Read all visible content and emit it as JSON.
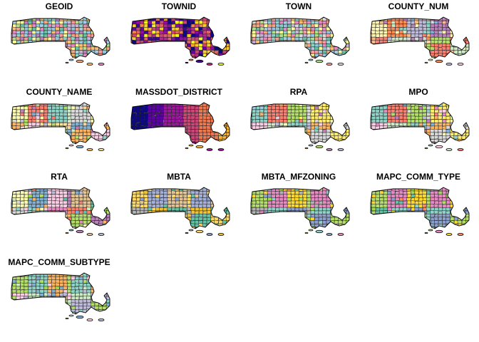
{
  "panels": [
    {
      "title": "GEOID",
      "palette": [
        "#f4a582",
        "#92c5de",
        "#b2df8a",
        "#fdbf6f",
        "#cab2d6",
        "#fb9a99",
        "#a6cee3",
        "#ffff99",
        "#8dd3c7",
        "#e78ac3",
        "#66c2a5",
        "#bc80bd"
      ],
      "mode": "random"
    },
    {
      "title": "TOWNID",
      "palette": [
        "#0d0887",
        "#41049d",
        "#6a00a8",
        "#8f0da4",
        "#b12a90",
        "#cc4778",
        "#e16462",
        "#f2844b",
        "#fca636",
        "#fcce25",
        "#f0f921"
      ],
      "mode": "random"
    },
    {
      "title": "TOWN",
      "palette": [
        "#f4a582",
        "#92c5de",
        "#b2df8a",
        "#fdbf6f",
        "#cab2d6",
        "#fb9a99",
        "#a6cee3",
        "#ffff99",
        "#8dd3c7",
        "#e78ac3",
        "#66c2a5",
        "#d9d9d9"
      ],
      "mode": "random"
    },
    {
      "title": "COUNTY_NUM",
      "palette": [
        "#fff7b2",
        "#fdd49e",
        "#fdbb84",
        "#fc8d59",
        "#b3de69",
        "#80b1d3",
        "#bebada",
        "#fb8072",
        "#8dd3c7",
        "#ffffb3",
        "#ccebc5",
        "#bc80bd",
        "#fccde5",
        "#d9d9d9"
      ],
      "mode": "region"
    },
    {
      "title": "COUNTY_NAME",
      "palette": [
        "#ffffb3",
        "#fdd49e",
        "#b3de69",
        "#fb8072",
        "#80b1d3",
        "#bebada",
        "#8dd3c7",
        "#fdb462",
        "#ccebc5",
        "#bc80bd",
        "#fccde5",
        "#d9d9d9",
        "#e5f5e0",
        "#fee391"
      ],
      "mode": "region"
    },
    {
      "title": "MASSDOT_DISTRICT",
      "palette": [
        "#0d0887",
        "#5c01a6",
        "#9c179e",
        "#cc4778",
        "#ed7953",
        "#fdb42f"
      ],
      "mode": "gradient"
    },
    {
      "title": "RPA",
      "palette": [
        "#8dd3c7",
        "#ffffb3",
        "#bebada",
        "#fb8072",
        "#80b1d3",
        "#fdb462",
        "#b3de69",
        "#fccde5",
        "#d9d9d9",
        "#bc80bd",
        "#ccebc5",
        "#ffed6f",
        "#a6cee3"
      ],
      "mode": "region"
    },
    {
      "title": "MPO",
      "palette": [
        "#8dd3c7",
        "#ffffb3",
        "#bebada",
        "#fb8072",
        "#80b1d3",
        "#fdb462",
        "#b3de69",
        "#fccde5",
        "#d9d9d9",
        "#bc80bd",
        "#ccebc5",
        "#ffed6f",
        "#e78ac3"
      ],
      "mode": "region"
    },
    {
      "title": "RTA",
      "palette": [
        "#ffffb3",
        "#bebada",
        "#fb8072",
        "#80b1d3",
        "#fdb462",
        "#b3de69",
        "#fccde5",
        "#d9d9d9",
        "#bc80bd",
        "#ccebc5",
        "#8dd3c7",
        "#e5c494",
        "#a6d854",
        "#e78ac3",
        "#66c2a5",
        "#fc8d62"
      ],
      "mode": "region"
    },
    {
      "title": "MBTA",
      "palette": [
        "#ffd966",
        "#ffd966",
        "#f1c232",
        "#a4b0d8",
        "#8da0cb",
        "#66c2a5",
        "#e5c494",
        "#b3b3b3"
      ],
      "mode": "region"
    },
    {
      "title": "MBTA_MFZONING",
      "palette": [
        "#b3de69",
        "#a6d854",
        "#8dd3c7",
        "#e78ac3",
        "#fc8d62",
        "#8da0cb",
        "#ffd92f",
        "#b3b3b3"
      ],
      "mode": "region"
    },
    {
      "title": "MAPC_COMM_TYPE",
      "palette": [
        "#b3de69",
        "#a6d854",
        "#8dd3c7",
        "#e78ac3",
        "#fc8d62",
        "#8da0cb",
        "#ffd92f",
        "#66c2a5"
      ],
      "mode": "region"
    },
    {
      "title": "MAPC_COMM_SUBTYPE",
      "palette": [
        "#b3de69",
        "#a6d854",
        "#ccebc5",
        "#8dd3c7",
        "#80b1d3",
        "#bebada",
        "#fdb462",
        "#fccde5"
      ],
      "mode": "region"
    }
  ]
}
